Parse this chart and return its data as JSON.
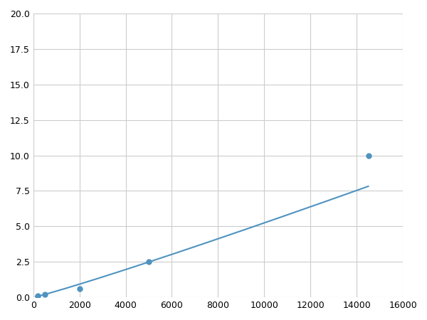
{
  "x": [
    200,
    500,
    2000,
    5000,
    14500
  ],
  "y": [
    0.1,
    0.2,
    0.6,
    2.5,
    10.0
  ],
  "line_color": "#4f93c0",
  "marker_color": "#4f93c0",
  "marker_size": 5,
  "line_width": 1.5,
  "xlim": [
    0,
    16000
  ],
  "ylim": [
    0,
    20
  ],
  "xticks": [
    0,
    2000,
    4000,
    6000,
    8000,
    10000,
    12000,
    14000,
    16000
  ],
  "yticks": [
    0.0,
    2.5,
    5.0,
    7.5,
    10.0,
    12.5,
    15.0,
    17.5,
    20.0
  ],
  "grid_color": "#cccccc",
  "background_color": "#ffffff",
  "fig_bg_color": "#ffffff"
}
